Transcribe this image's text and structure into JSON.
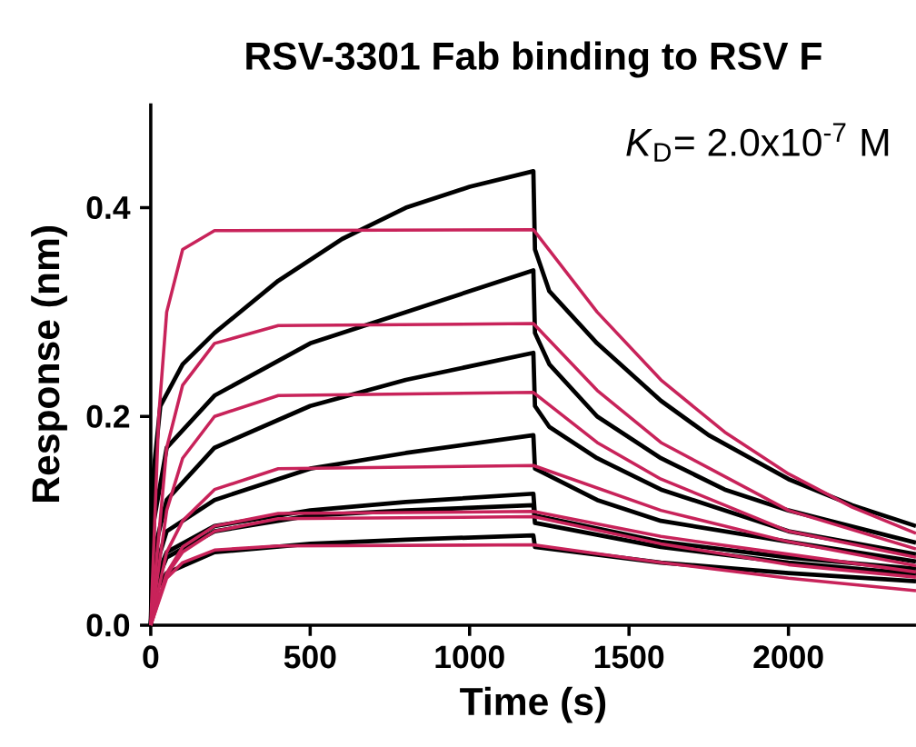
{
  "chart_data": {
    "type": "line",
    "title": "RSV-3301 Fab binding to RSV F",
    "xlabel": "Time (s)",
    "ylabel": "Response (nm)",
    "xlim": [
      0,
      2400
    ],
    "ylim": [
      0,
      0.5
    ],
    "xticks": [
      0,
      500,
      1000,
      1500,
      2000
    ],
    "yticks": [
      {
        "value": 0,
        "label": "0.0"
      },
      0.2,
      0.4
    ],
    "grid": false,
    "marker": "none",
    "line_style": "solid",
    "annotations": [
      "*K*$_{D}$= 2.0x10$^{-7}$ M"
    ],
    "series": [
      {
        "color": "#000000",
        "x": [
          0,
          10,
          30,
          100,
          200,
          400,
          600,
          800,
          1000,
          1200,
          1205,
          1250,
          1400,
          1600,
          1750,
          2000,
          2200,
          2400
        ],
        "values": [
          0,
          0.15,
          0.21,
          0.25,
          0.28,
          0.33,
          0.37,
          0.4,
          0.42,
          0.435,
          0.36,
          0.32,
          0.27,
          0.215,
          0.182,
          0.14,
          0.115,
          0.095
        ]
      },
      {
        "color": "#000000",
        "x": [
          0,
          10,
          50,
          200,
          500,
          800,
          1000,
          1200,
          1205,
          1250,
          1400,
          1600,
          1800,
          2000,
          2400
        ],
        "values": [
          0,
          0.1,
          0.17,
          0.22,
          0.27,
          0.3,
          0.32,
          0.34,
          0.28,
          0.25,
          0.2,
          0.16,
          0.13,
          0.11,
          0.079
        ]
      },
      {
        "color": "#000000",
        "x": [
          0,
          10,
          50,
          200,
          500,
          800,
          1200,
          1205,
          1250,
          1400,
          1600,
          2000,
          2400
        ],
        "values": [
          0,
          0.07,
          0.12,
          0.17,
          0.21,
          0.235,
          0.261,
          0.21,
          0.19,
          0.16,
          0.13,
          0.09,
          0.068
        ]
      },
      {
        "color": "#000000",
        "x": [
          0,
          10,
          50,
          200,
          500,
          800,
          1200,
          1205,
          1400,
          1600,
          2000,
          2400
        ],
        "values": [
          0,
          0.05,
          0.09,
          0.12,
          0.15,
          0.165,
          0.182,
          0.15,
          0.12,
          0.1,
          0.08,
          0.061
        ]
      },
      {
        "color": "#000000",
        "x": [
          0,
          10,
          50,
          200,
          500,
          800,
          1200,
          1205,
          1600,
          2000,
          2400
        ],
        "values": [
          0,
          0.04,
          0.07,
          0.095,
          0.11,
          0.118,
          0.126,
          0.105,
          0.08,
          0.065,
          0.054
        ]
      },
      {
        "color": "#000000",
        "x": [
          0,
          10,
          50,
          200,
          500,
          800,
          1200,
          1205,
          1600,
          2000,
          2400
        ],
        "values": [
          0,
          0.035,
          0.065,
          0.09,
          0.105,
          0.11,
          0.115,
          0.098,
          0.075,
          0.06,
          0.049
        ]
      },
      {
        "color": "#000000",
        "x": [
          0,
          10,
          50,
          200,
          500,
          800,
          1200,
          1205,
          1600,
          2000,
          2400
        ],
        "values": [
          0,
          0.03,
          0.05,
          0.07,
          0.078,
          0.082,
          0.086,
          0.075,
          0.06,
          0.05,
          0.042
        ]
      },
      {
        "color": "#c8235a",
        "x": [
          0,
          25,
          50,
          100,
          200,
          1200,
          1400,
          1600,
          1800,
          2000,
          2200,
          2400
        ],
        "values": [
          0,
          0.2,
          0.3,
          0.36,
          0.378,
          0.379,
          0.3,
          0.235,
          0.185,
          0.145,
          0.113,
          0.088
        ]
      },
      {
        "color": "#c8235a",
        "x": [
          0,
          50,
          100,
          200,
          400,
          1200,
          1400,
          1600,
          2000,
          2400
        ],
        "values": [
          0,
          0.17,
          0.23,
          0.27,
          0.287,
          0.289,
          0.225,
          0.175,
          0.11,
          0.073
        ]
      },
      {
        "color": "#c8235a",
        "x": [
          0,
          50,
          100,
          200,
          400,
          1200,
          1400,
          1600,
          2000,
          2400
        ],
        "values": [
          0,
          0.11,
          0.16,
          0.2,
          0.22,
          0.223,
          0.175,
          0.14,
          0.09,
          0.065
        ]
      },
      {
        "color": "#c8235a",
        "x": [
          0,
          50,
          100,
          200,
          400,
          1200,
          1600,
          2000,
          2400
        ],
        "values": [
          0,
          0.07,
          0.1,
          0.13,
          0.15,
          0.153,
          0.11,
          0.08,
          0.057
        ]
      },
      {
        "color": "#c8235a",
        "x": [
          0,
          50,
          100,
          200,
          400,
          1200,
          1600,
          2000,
          2400
        ],
        "values": [
          0,
          0.05,
          0.075,
          0.095,
          0.107,
          0.109,
          0.085,
          0.068,
          0.051
        ]
      },
      {
        "color": "#c8235a",
        "x": [
          0,
          50,
          100,
          200,
          400,
          1200,
          1600,
          2000,
          2400
        ],
        "values": [
          0,
          0.048,
          0.07,
          0.09,
          0.102,
          0.104,
          0.078,
          0.058,
          0.046
        ]
      },
      {
        "color": "#c8235a",
        "x": [
          0,
          50,
          100,
          200,
          400,
          1200,
          1600,
          2000,
          2400
        ],
        "values": [
          0,
          0.045,
          0.06,
          0.072,
          0.076,
          0.077,
          0.06,
          0.045,
          0.033
        ]
      }
    ]
  }
}
